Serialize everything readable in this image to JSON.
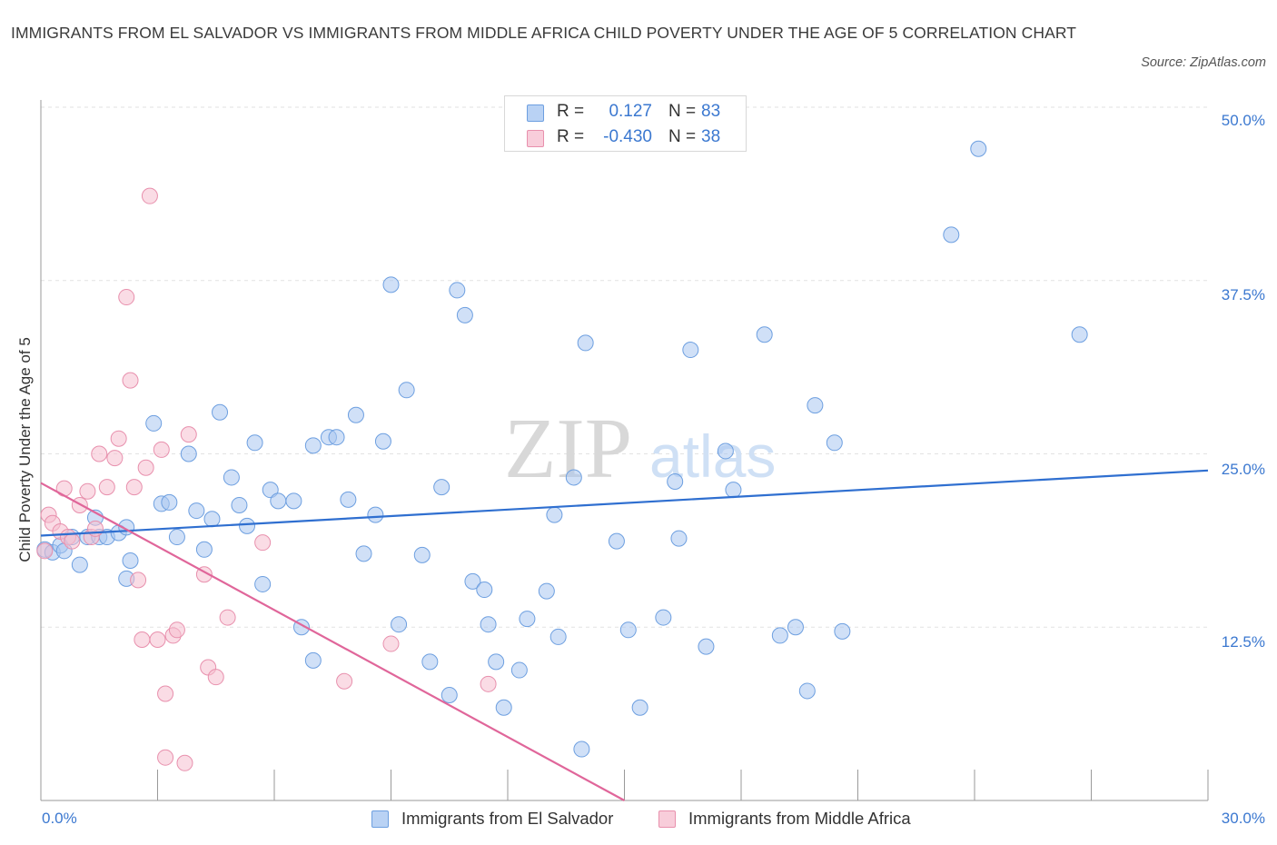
{
  "title": "IMMIGRANTS FROM EL SALVADOR VS IMMIGRANTS FROM MIDDLE AFRICA CHILD POVERTY UNDER THE AGE OF 5 CORRELATION CHART",
  "source": "Source: ZipAtlas.com",
  "watermark": {
    "zip": "ZIP",
    "atlas": "atlas"
  },
  "legend": {
    "r_label": "R =",
    "n_label": "N =",
    "rows": [
      {
        "r": "0.127",
        "n": "83"
      },
      {
        "r": "-0.430",
        "n": "38"
      }
    ]
  },
  "colors": {
    "blue_fill": "#a9c7f0",
    "blue_stroke": "#6d9fe0",
    "blue_line": "#2f6fd0",
    "pink_fill": "#f6bfd0",
    "pink_stroke": "#e890ad",
    "pink_line": "#e0669a",
    "tick_text": "#3b78d0",
    "grid": "#e2e2e2"
  },
  "chart_data": {
    "type": "scatter",
    "title": "IMMIGRANTS FROM EL SALVADOR VS IMMIGRANTS FROM MIDDLE AFRICA CHILD POVERTY UNDER THE AGE OF 5 CORRELATION CHART",
    "xlabel": "",
    "ylabel": "Child Poverty Under the Age of 5",
    "xlim": [
      0,
      30
    ],
    "ylim": [
      0,
      50
    ],
    "x_tick_labels": [
      "0.0%",
      "30.0%"
    ],
    "y_ticks": [
      {
        "value": 12.5,
        "label": "12.5%"
      },
      {
        "value": 25,
        "label": "25.0%"
      },
      {
        "value": 37.5,
        "label": "37.5%"
      },
      {
        "value": 50,
        "label": "50.0%"
      }
    ],
    "grid": true,
    "legend_position": "top-center",
    "series": [
      {
        "name": "Immigrants from El Salvador",
        "r": 0.127,
        "n": 83,
        "trend": [
          [
            0,
            19.1
          ],
          [
            30,
            23.8
          ]
        ],
        "points": [
          [
            0.1,
            18.1
          ],
          [
            0.3,
            17.9
          ],
          [
            0.5,
            18.4
          ],
          [
            0.6,
            18.0
          ],
          [
            0.8,
            19.0
          ],
          [
            1.0,
            17.0
          ],
          [
            1.2,
            19.0
          ],
          [
            1.4,
            20.4
          ],
          [
            1.5,
            19.0
          ],
          [
            1.7,
            19.0
          ],
          [
            2.0,
            19.3
          ],
          [
            2.2,
            19.7
          ],
          [
            2.3,
            17.3
          ],
          [
            2.2,
            16.0
          ],
          [
            2.9,
            27.2
          ],
          [
            3.1,
            21.4
          ],
          [
            3.3,
            21.5
          ],
          [
            3.5,
            19.0
          ],
          [
            3.8,
            25.0
          ],
          [
            4.0,
            20.9
          ],
          [
            4.2,
            18.1
          ],
          [
            4.4,
            20.3
          ],
          [
            4.6,
            28.0
          ],
          [
            4.9,
            23.3
          ],
          [
            5.1,
            21.3
          ],
          [
            5.3,
            19.8
          ],
          [
            5.5,
            25.8
          ],
          [
            5.7,
            15.6
          ],
          [
            5.9,
            22.4
          ],
          [
            6.1,
            21.6
          ],
          [
            6.5,
            21.6
          ],
          [
            6.7,
            12.5
          ],
          [
            7.0,
            25.6
          ],
          [
            7.0,
            10.1
          ],
          [
            7.4,
            26.2
          ],
          [
            7.6,
            26.2
          ],
          [
            7.9,
            21.7
          ],
          [
            8.1,
            27.8
          ],
          [
            8.3,
            17.8
          ],
          [
            8.6,
            20.6
          ],
          [
            8.8,
            25.9
          ],
          [
            9.0,
            37.2
          ],
          [
            9.2,
            12.7
          ],
          [
            9.4,
            29.6
          ],
          [
            9.8,
            17.7
          ],
          [
            10.0,
            10.0
          ],
          [
            10.3,
            22.6
          ],
          [
            10.5,
            7.6
          ],
          [
            10.7,
            36.8
          ],
          [
            10.9,
            35.0
          ],
          [
            11.1,
            15.8
          ],
          [
            11.4,
            15.2
          ],
          [
            11.5,
            12.7
          ],
          [
            11.7,
            10.0
          ],
          [
            11.9,
            6.7
          ],
          [
            12.3,
            9.4
          ],
          [
            12.5,
            13.1
          ],
          [
            13.0,
            15.1
          ],
          [
            13.2,
            20.6
          ],
          [
            13.3,
            11.8
          ],
          [
            13.7,
            23.3
          ],
          [
            13.9,
            3.7
          ],
          [
            14.0,
            33.0
          ],
          [
            14.8,
            18.7
          ],
          [
            15.1,
            12.3
          ],
          [
            15.4,
            6.7
          ],
          [
            16.0,
            13.2
          ],
          [
            16.3,
            23.0
          ],
          [
            16.4,
            18.9
          ],
          [
            16.7,
            32.5
          ],
          [
            17.1,
            11.1
          ],
          [
            17.6,
            25.2
          ],
          [
            17.8,
            22.4
          ],
          [
            18.6,
            33.6
          ],
          [
            19.0,
            11.9
          ],
          [
            19.4,
            12.5
          ],
          [
            19.7,
            7.9
          ],
          [
            19.9,
            28.5
          ],
          [
            20.4,
            25.8
          ],
          [
            20.6,
            12.2
          ],
          [
            23.4,
            40.8
          ],
          [
            24.1,
            47.0
          ],
          [
            26.7,
            33.6
          ]
        ]
      },
      {
        "name": "Immigrants from Middle Africa",
        "r": -0.43,
        "n": 38,
        "trend": [
          [
            0,
            22.9
          ],
          [
            15,
            0
          ]
        ],
        "points": [
          [
            0.1,
            18.0
          ],
          [
            0.2,
            20.6
          ],
          [
            0.3,
            20.0
          ],
          [
            0.5,
            19.4
          ],
          [
            0.6,
            22.5
          ],
          [
            0.7,
            19.0
          ],
          [
            0.8,
            18.7
          ],
          [
            1.0,
            21.3
          ],
          [
            1.2,
            22.3
          ],
          [
            1.3,
            19.0
          ],
          [
            1.4,
            19.6
          ],
          [
            1.5,
            25.0
          ],
          [
            1.7,
            22.6
          ],
          [
            1.9,
            24.7
          ],
          [
            2.0,
            26.1
          ],
          [
            2.2,
            36.3
          ],
          [
            2.3,
            30.3
          ],
          [
            2.5,
            15.9
          ],
          [
            2.6,
            11.6
          ],
          [
            2.7,
            24.0
          ],
          [
            2.8,
            43.6
          ],
          [
            3.0,
            11.6
          ],
          [
            3.1,
            25.3
          ],
          [
            3.2,
            7.7
          ],
          [
            3.2,
            3.1
          ],
          [
            3.4,
            11.9
          ],
          [
            3.5,
            12.3
          ],
          [
            3.7,
            2.7
          ],
          [
            3.8,
            26.4
          ],
          [
            4.2,
            16.3
          ],
          [
            4.3,
            9.6
          ],
          [
            4.5,
            8.9
          ],
          [
            4.8,
            13.2
          ],
          [
            5.7,
            18.6
          ],
          [
            7.8,
            8.6
          ],
          [
            9.0,
            11.3
          ],
          [
            11.5,
            8.4
          ],
          [
            2.4,
            22.6
          ]
        ]
      }
    ]
  },
  "bottom_legend": {
    "series_1": "Immigrants from El Salvador",
    "series_2": "Immigrants from Middle Africa"
  }
}
